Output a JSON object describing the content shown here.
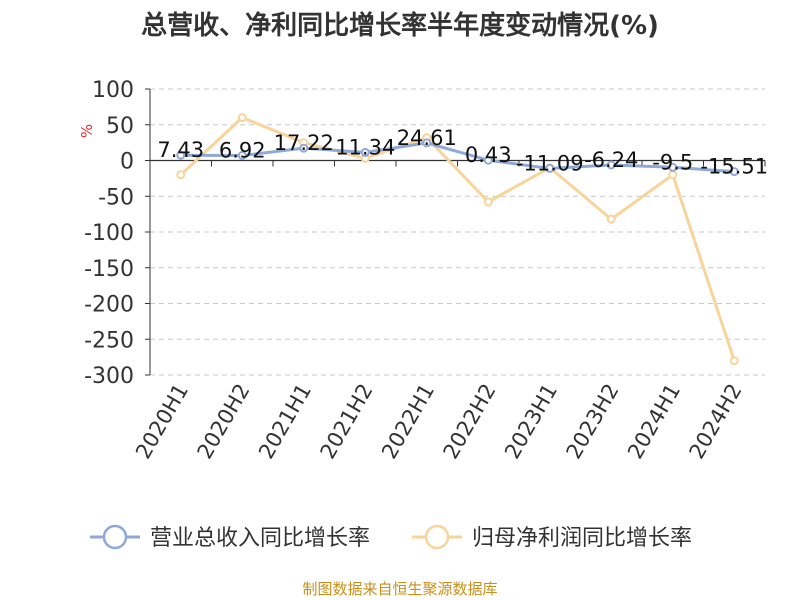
{
  "title": "总营收、净利同比增长率半年度变动情况(%)",
  "source": "制图数据来自恒生聚源数据库",
  "chart_data": {
    "type": "line",
    "unit": "%",
    "categories": [
      "2020H1",
      "2020H2",
      "2021H1",
      "2021H2",
      "2022H1",
      "2022H2",
      "2023H1",
      "2023H2",
      "2024H1",
      "2024H2"
    ],
    "ylim": [
      -300,
      100
    ],
    "yticks": [
      100,
      50,
      0,
      -50,
      -100,
      -150,
      -200,
      -250,
      -300
    ],
    "grid": true,
    "legend_position": "bottom",
    "series": [
      {
        "name": "营业总收入同比增长率",
        "color": "#8fa8d8",
        "values": [
          7.43,
          6.92,
          17.22,
          11.34,
          24.61,
          0.43,
          -11.09,
          -6.24,
          -9.5,
          -15.51
        ],
        "labels": [
          "7.43",
          "6.92",
          "17.22",
          "11.34",
          "24.61",
          "0.43",
          "-11.09",
          "-6.24",
          "-9.5",
          "-15.51"
        ]
      },
      {
        "name": "归母净利润同比增长率",
        "color": "#f8d49a",
        "values": [
          -20,
          60,
          25,
          3,
          32,
          -58,
          -10,
          -82,
          -20,
          -280
        ]
      }
    ]
  }
}
